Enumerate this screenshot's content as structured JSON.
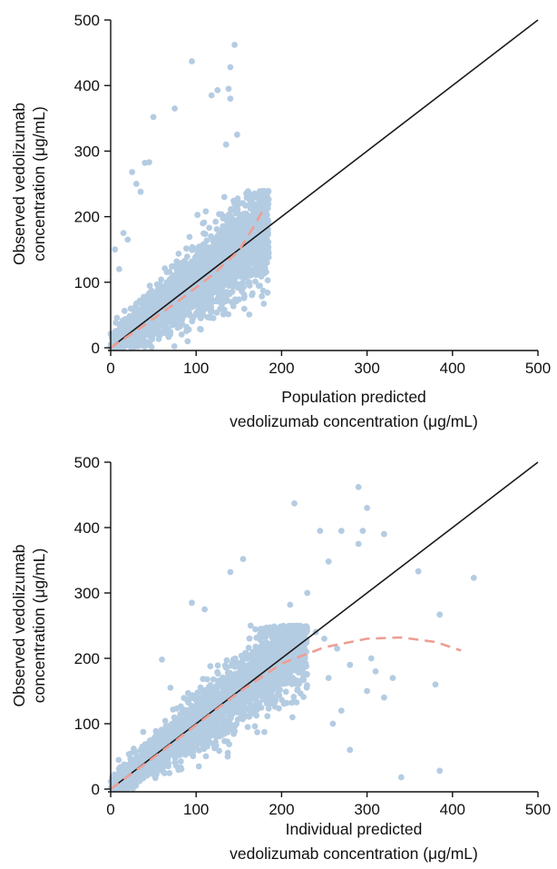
{
  "chart_data": [
    {
      "type": "scatter",
      "xlabel_lines": [
        "Population predicted",
        "vedolizumab concentration (μg/mL)"
      ],
      "ylabel_lines": [
        "Observed vedolizumab",
        "concentration (μg/mL)"
      ],
      "xlim": [
        0,
        500
      ],
      "ylim": [
        0,
        500
      ],
      "xticks": [
        "0",
        "100",
        "200",
        "300",
        "400",
        "500"
      ],
      "yticks": [
        "0",
        "100",
        "200",
        "300",
        "400",
        "500"
      ],
      "identity_line": [
        [
          0,
          0
        ],
        [
          500,
          500
        ]
      ],
      "smooth_line": [
        [
          0,
          0
        ],
        [
          40,
          35
        ],
        [
          80,
          72
        ],
        [
          120,
          112
        ],
        [
          150,
          148
        ],
        [
          170,
          190
        ],
        [
          178,
          210
        ]
      ],
      "cloud": {
        "count": 2400,
        "x_range": [
          0,
          185
        ],
        "y_center_slope": 1.0,
        "y_spread": 30,
        "clip_y": [
          0,
          240
        ]
      },
      "outliers": [
        [
          95,
          437
        ],
        [
          145,
          462
        ],
        [
          140,
          428
        ],
        [
          138,
          395
        ],
        [
          125,
          393
        ],
        [
          118,
          385
        ],
        [
          140,
          380
        ],
        [
          148,
          325
        ],
        [
          135,
          310
        ],
        [
          50,
          352
        ],
        [
          75,
          365
        ],
        [
          45,
          283
        ],
        [
          40,
          282
        ],
        [
          30,
          250
        ],
        [
          25,
          268
        ],
        [
          35,
          238
        ],
        [
          15,
          175
        ],
        [
          20,
          165
        ],
        [
          5,
          150
        ],
        [
          10,
          120
        ],
        [
          60,
          22
        ],
        [
          90,
          10
        ]
      ],
      "colors": {
        "points": "#b4cce2",
        "identity": "#1a1a1a",
        "smooth": "#ee9e93"
      }
    },
    {
      "type": "scatter",
      "xlabel_lines": [
        "Individual predicted",
        "vedolizumab concentration (μg/mL)"
      ],
      "ylabel_lines": [
        "Observed vedolizumab",
        "concentration (μg/mL)"
      ],
      "xlim": [
        0,
        500
      ],
      "ylim": [
        0,
        500
      ],
      "xticks": [
        "0",
        "100",
        "200",
        "300",
        "400",
        "500"
      ],
      "yticks": [
        "0",
        "100",
        "200",
        "300",
        "400",
        "500"
      ],
      "identity_line": [
        [
          0,
          0
        ],
        [
          500,
          500
        ]
      ],
      "smooth_line": [
        [
          0,
          0
        ],
        [
          50,
          48
        ],
        [
          100,
          98
        ],
        [
          150,
          148
        ],
        [
          200,
          192
        ],
        [
          250,
          217
        ],
        [
          300,
          230
        ],
        [
          340,
          232
        ],
        [
          380,
          225
        ],
        [
          410,
          212
        ]
      ],
      "cloud": {
        "count": 2400,
        "x_range": [
          0,
          230
        ],
        "y_center_slope": 1.0,
        "y_spread": 28,
        "clip_y": [
          0,
          250
        ]
      },
      "outliers": [
        [
          290,
          462
        ],
        [
          300,
          430
        ],
        [
          295,
          395
        ],
        [
          215,
          437
        ],
        [
          245,
          395
        ],
        [
          270,
          395
        ],
        [
          320,
          390
        ],
        [
          290,
          375
        ],
        [
          255,
          348
        ],
        [
          385,
          267
        ],
        [
          360,
          333
        ],
        [
          425,
          323
        ],
        [
          380,
          160
        ],
        [
          385,
          28
        ],
        [
          340,
          18
        ],
        [
          305,
          200
        ],
        [
          310,
          180
        ],
        [
          330,
          170
        ],
        [
          270,
          120
        ],
        [
          260,
          100
        ],
        [
          280,
          60
        ],
        [
          240,
          240
        ],
        [
          250,
          230
        ],
        [
          265,
          215
        ],
        [
          300,
          150
        ],
        [
          320,
          140
        ],
        [
          255,
          170
        ],
        [
          280,
          190
        ],
        [
          230,
          300
        ],
        [
          210,
          282
        ],
        [
          155,
          352
        ],
        [
          140,
          332
        ],
        [
          95,
          285
        ],
        [
          110,
          275
        ],
        [
          60,
          198
        ],
        [
          70,
          155
        ]
      ],
      "colors": {
        "points": "#b4cce2",
        "identity": "#1a1a1a",
        "smooth": "#ee9e93"
      }
    }
  ]
}
